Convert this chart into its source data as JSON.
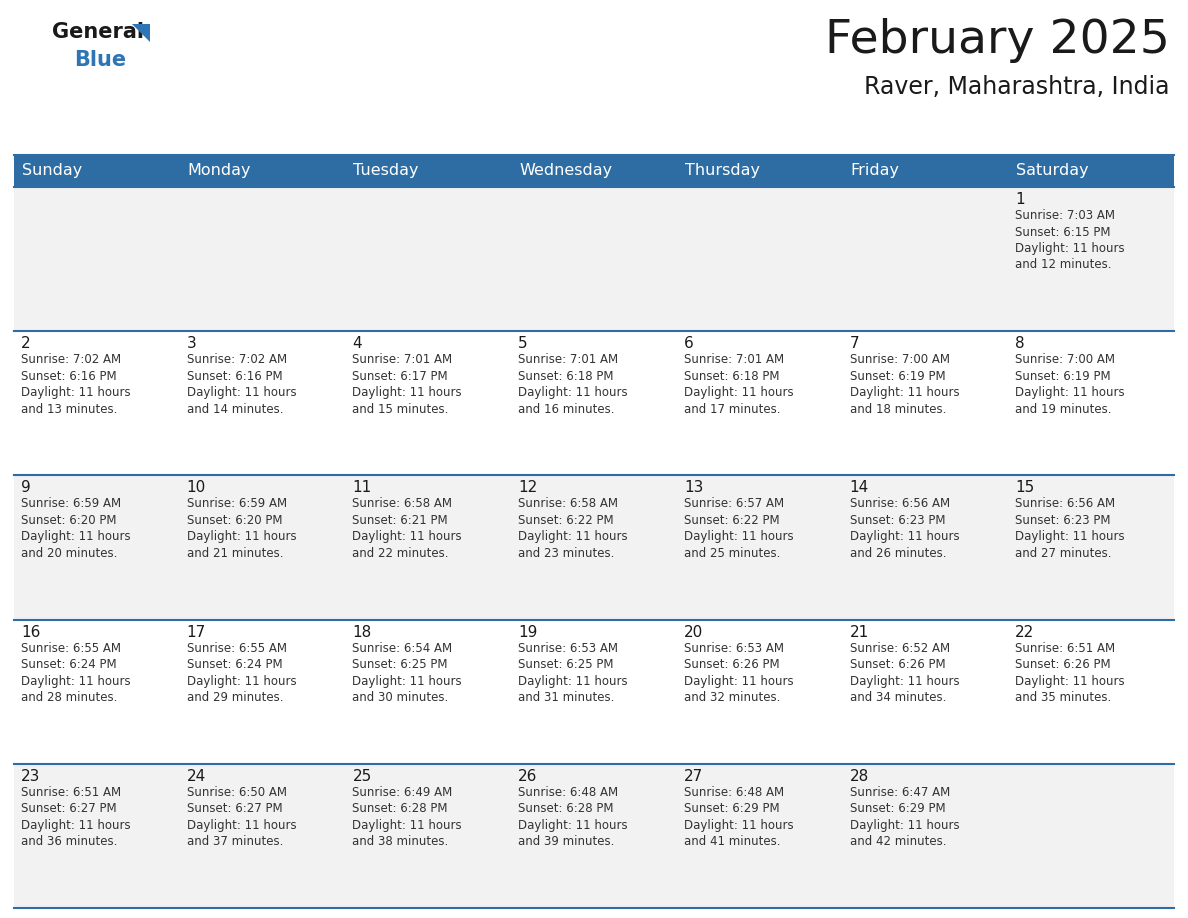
{
  "title": "February 2025",
  "subtitle": "Raver, Maharashtra, India",
  "days_of_week": [
    "Sunday",
    "Monday",
    "Tuesday",
    "Wednesday",
    "Thursday",
    "Friday",
    "Saturday"
  ],
  "header_bg": "#2E6DA4",
  "header_text_color": "#FFFFFF",
  "cell_bg_odd": "#F2F2F2",
  "cell_bg_even": "#FFFFFF",
  "grid_line_color": "#2E6DA4",
  "text_color_dark": "#1A1A1A",
  "text_color_info": "#333333",
  "logo_general_color": "#1A1A1A",
  "logo_blue_color": "#2E75B6",
  "logo_triangle_color": "#2E75B6",
  "calendar_data": [
    [
      null,
      null,
      null,
      null,
      null,
      null,
      {
        "day": 1,
        "sunrise": "7:03 AM",
        "sunset": "6:15 PM",
        "daylight_hours": 11,
        "daylight_minutes": 12
      }
    ],
    [
      {
        "day": 2,
        "sunrise": "7:02 AM",
        "sunset": "6:16 PM",
        "daylight_hours": 11,
        "daylight_minutes": 13
      },
      {
        "day": 3,
        "sunrise": "7:02 AM",
        "sunset": "6:16 PM",
        "daylight_hours": 11,
        "daylight_minutes": 14
      },
      {
        "day": 4,
        "sunrise": "7:01 AM",
        "sunset": "6:17 PM",
        "daylight_hours": 11,
        "daylight_minutes": 15
      },
      {
        "day": 5,
        "sunrise": "7:01 AM",
        "sunset": "6:18 PM",
        "daylight_hours": 11,
        "daylight_minutes": 16
      },
      {
        "day": 6,
        "sunrise": "7:01 AM",
        "sunset": "6:18 PM",
        "daylight_hours": 11,
        "daylight_minutes": 17
      },
      {
        "day": 7,
        "sunrise": "7:00 AM",
        "sunset": "6:19 PM",
        "daylight_hours": 11,
        "daylight_minutes": 18
      },
      {
        "day": 8,
        "sunrise": "7:00 AM",
        "sunset": "6:19 PM",
        "daylight_hours": 11,
        "daylight_minutes": 19
      }
    ],
    [
      {
        "day": 9,
        "sunrise": "6:59 AM",
        "sunset": "6:20 PM",
        "daylight_hours": 11,
        "daylight_minutes": 20
      },
      {
        "day": 10,
        "sunrise": "6:59 AM",
        "sunset": "6:20 PM",
        "daylight_hours": 11,
        "daylight_minutes": 21
      },
      {
        "day": 11,
        "sunrise": "6:58 AM",
        "sunset": "6:21 PM",
        "daylight_hours": 11,
        "daylight_minutes": 22
      },
      {
        "day": 12,
        "sunrise": "6:58 AM",
        "sunset": "6:22 PM",
        "daylight_hours": 11,
        "daylight_minutes": 23
      },
      {
        "day": 13,
        "sunrise": "6:57 AM",
        "sunset": "6:22 PM",
        "daylight_hours": 11,
        "daylight_minutes": 25
      },
      {
        "day": 14,
        "sunrise": "6:56 AM",
        "sunset": "6:23 PM",
        "daylight_hours": 11,
        "daylight_minutes": 26
      },
      {
        "day": 15,
        "sunrise": "6:56 AM",
        "sunset": "6:23 PM",
        "daylight_hours": 11,
        "daylight_minutes": 27
      }
    ],
    [
      {
        "day": 16,
        "sunrise": "6:55 AM",
        "sunset": "6:24 PM",
        "daylight_hours": 11,
        "daylight_minutes": 28
      },
      {
        "day": 17,
        "sunrise": "6:55 AM",
        "sunset": "6:24 PM",
        "daylight_hours": 11,
        "daylight_minutes": 29
      },
      {
        "day": 18,
        "sunrise": "6:54 AM",
        "sunset": "6:25 PM",
        "daylight_hours": 11,
        "daylight_minutes": 30
      },
      {
        "day": 19,
        "sunrise": "6:53 AM",
        "sunset": "6:25 PM",
        "daylight_hours": 11,
        "daylight_minutes": 31
      },
      {
        "day": 20,
        "sunrise": "6:53 AM",
        "sunset": "6:26 PM",
        "daylight_hours": 11,
        "daylight_minutes": 32
      },
      {
        "day": 21,
        "sunrise": "6:52 AM",
        "sunset": "6:26 PM",
        "daylight_hours": 11,
        "daylight_minutes": 34
      },
      {
        "day": 22,
        "sunrise": "6:51 AM",
        "sunset": "6:26 PM",
        "daylight_hours": 11,
        "daylight_minutes": 35
      }
    ],
    [
      {
        "day": 23,
        "sunrise": "6:51 AM",
        "sunset": "6:27 PM",
        "daylight_hours": 11,
        "daylight_minutes": 36
      },
      {
        "day": 24,
        "sunrise": "6:50 AM",
        "sunset": "6:27 PM",
        "daylight_hours": 11,
        "daylight_minutes": 37
      },
      {
        "day": 25,
        "sunrise": "6:49 AM",
        "sunset": "6:28 PM",
        "daylight_hours": 11,
        "daylight_minutes": 38
      },
      {
        "day": 26,
        "sunrise": "6:48 AM",
        "sunset": "6:28 PM",
        "daylight_hours": 11,
        "daylight_minutes": 39
      },
      {
        "day": 27,
        "sunrise": "6:48 AM",
        "sunset": "6:29 PM",
        "daylight_hours": 11,
        "daylight_minutes": 41
      },
      {
        "day": 28,
        "sunrise": "6:47 AM",
        "sunset": "6:29 PM",
        "daylight_hours": 11,
        "daylight_minutes": 42
      },
      null
    ]
  ]
}
